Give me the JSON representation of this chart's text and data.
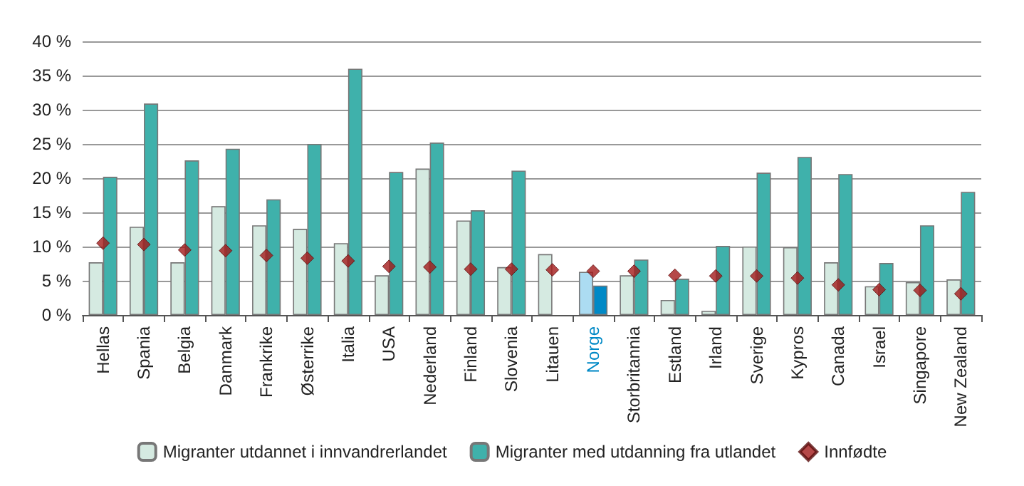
{
  "chart_data": {
    "type": "bar",
    "categories": [
      "Hellas",
      "Spania",
      "Belgia",
      "Danmark",
      "Frankrike",
      "Østerrike",
      "Italia",
      "USA",
      "Nederland",
      "Finland",
      "Slovenia",
      "Litauen",
      "Norge",
      "Storbritannia",
      "Estland",
      "Irland",
      "Sverige",
      "Kypros",
      "Canada",
      "Israel",
      "Singapore",
      "New Zealand"
    ],
    "series": [
      {
        "name": "Migranter utdannet i innvandrerlandet",
        "color": "#d5eae1",
        "colors": [
          "#d5eae1",
          "#d5eae1",
          "#d5eae1",
          "#d5eae1",
          "#d5eae1",
          "#d5eae1",
          "#d5eae1",
          "#d5eae1",
          "#d5eae1",
          "#d5eae1",
          "#d5eae1",
          "#d5eae1",
          "#acdcf2",
          "#d5eae1",
          "#d5eae1",
          "#d5eae1",
          "#d5eae1",
          "#d5eae1",
          "#d5eae1",
          "#d5eae1",
          "#d5eae1",
          "#d5eae1"
        ],
        "values": [
          7.7,
          12.9,
          7.7,
          15.9,
          13.1,
          12.6,
          10.5,
          5.8,
          21.4,
          13.8,
          7.0,
          8.9,
          6.3,
          5.8,
          2.2,
          0.6,
          10.0,
          9.9,
          7.7,
          4.2,
          4.8,
          5.2
        ]
      },
      {
        "name": "Migranter med utdanning fra utlandet",
        "color": "#3fb1ab",
        "colors": [
          "#3fb1ab",
          "#3fb1ab",
          "#3fb1ab",
          "#3fb1ab",
          "#3fb1ab",
          "#3fb1ab",
          "#3fb1ab",
          "#3fb1ab",
          "#3fb1ab",
          "#3fb1ab",
          "#3fb1ab",
          "#3fb1ab",
          "#0089c6",
          "#3fb1ab",
          "#3fb1ab",
          "#3fb1ab",
          "#3fb1ab",
          "#3fb1ab",
          "#3fb1ab",
          "#3fb1ab",
          "#3fb1ab",
          "#3fb1ab"
        ],
        "values": [
          20.2,
          30.9,
          22.6,
          24.3,
          16.9,
          25.0,
          36.0,
          20.9,
          25.2,
          15.3,
          21.1,
          null,
          4.3,
          8.1,
          5.3,
          10.1,
          20.8,
          23.1,
          20.6,
          7.6,
          13.1,
          18.0
        ]
      },
      {
        "name": "Innfødte",
        "type": "scatter",
        "marker": "diamond",
        "color": "#a31a1a",
        "values": [
          10.5,
          10.3,
          9.5,
          9.4,
          8.7,
          8.3,
          7.9,
          7.1,
          7.0,
          6.7,
          6.7,
          6.6,
          6.4,
          6.4,
          5.8,
          5.7,
          5.7,
          5.4,
          4.4,
          3.7,
          3.6,
          3.1
        ]
      }
    ],
    "ylim": [
      0,
      40
    ],
    "yticks": [
      {
        "value": 0,
        "label": "0 %"
      },
      {
        "value": 5,
        "label": "5 %"
      },
      {
        "value": 10,
        "label": "10 %"
      },
      {
        "value": 15,
        "label": "15 %"
      },
      {
        "value": 20,
        "label": "20 %"
      },
      {
        "value": 25,
        "label": "25 %"
      },
      {
        "value": 30,
        "label": "30 %"
      },
      {
        "value": 35,
        "label": "35 %"
      },
      {
        "value": 40,
        "label": "40 %"
      }
    ],
    "grid": "y",
    "legend": "bottom"
  }
}
